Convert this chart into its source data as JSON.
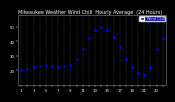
{
  "title": "Milwaukee Weather Wind Chill  Hourly Average  (24 Hours)",
  "title_fontsize": 3.5,
  "background_color": "#000000",
  "plot_bg_color": "#000000",
  "line_color": "#0000ff",
  "marker": ".",
  "marker_size": 1.8,
  "grid_color": "#555555",
  "legend_label": "Wind Chill",
  "legend_color": "#0000cc",
  "legend_bg": "#0000cc",
  "text_color": "#ffffff",
  "hours": [
    1,
    2,
    3,
    4,
    5,
    6,
    7,
    8,
    9,
    10,
    11,
    12,
    13,
    14,
    15,
    16,
    17,
    18,
    19,
    20,
    21,
    22,
    23,
    24
  ],
  "values": [
    20,
    21,
    22,
    23,
    24,
    23,
    22,
    23,
    24,
    28,
    35,
    42,
    48,
    50,
    48,
    43,
    36,
    28,
    22,
    18,
    17,
    22,
    35,
    42
  ],
  "ylim": [
    10,
    58
  ],
  "yticks": [
    20,
    30,
    40,
    50
  ],
  "tick_fontsize": 2.8,
  "spine_color": "#888888"
}
